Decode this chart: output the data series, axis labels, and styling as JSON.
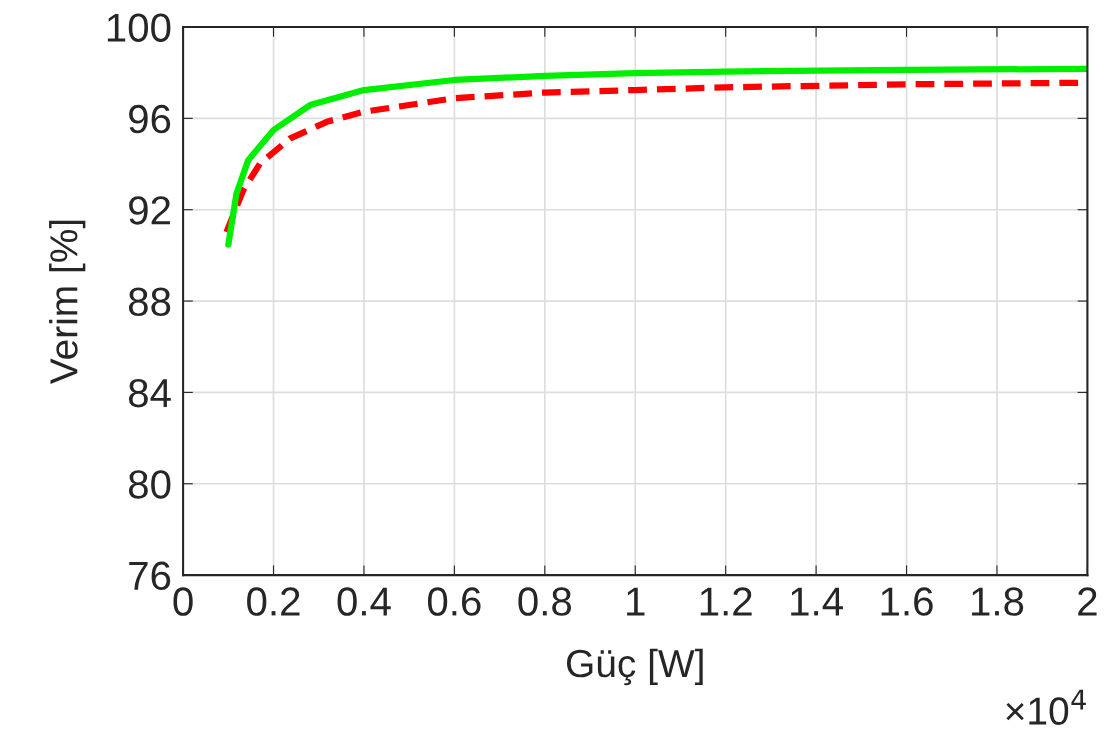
{
  "chart_data": {
    "type": "line",
    "xlabel": "Güç [W]",
    "ylabel": "Verim [%]",
    "annotations": [
      "×10$^{4}$"
    ],
    "series": [
      {
        "color": "#ff0000",
        "line_style": "dashed",
        "x": [
          0.096,
          0.133,
          0.17,
          0.237,
          0.318,
          0.4,
          0.6,
          0.8,
          1.0,
          1.2,
          1.6,
          2.0
        ],
        "values": [
          91.02,
          92.85,
          94.02,
          95.12,
          95.85,
          96.29,
          96.88,
          97.13,
          97.24,
          97.36,
          97.49,
          97.56
        ]
      },
      {
        "color": "#00ee00",
        "line_style": "solid",
        "x": [
          0.1,
          0.118,
          0.144,
          0.2,
          0.281,
          0.4,
          0.6,
          0.8,
          1.0,
          1.2,
          1.6,
          2.0
        ],
        "values": [
          90.47,
          92.7,
          94.17,
          95.49,
          96.58,
          97.24,
          97.68,
          97.86,
          97.98,
          98.05,
          98.12,
          98.17
        ]
      }
    ],
    "xlim": [
      0,
      2
    ],
    "xticks": [
      0,
      0.2,
      0.4,
      0.6,
      0.8,
      1,
      1.2,
      1.4,
      1.6,
      1.8,
      2
    ],
    "ylim": [
      76,
      100
    ],
    "yticks": [
      76,
      80,
      84,
      88,
      92,
      96,
      100
    ],
    "grid": true
  }
}
